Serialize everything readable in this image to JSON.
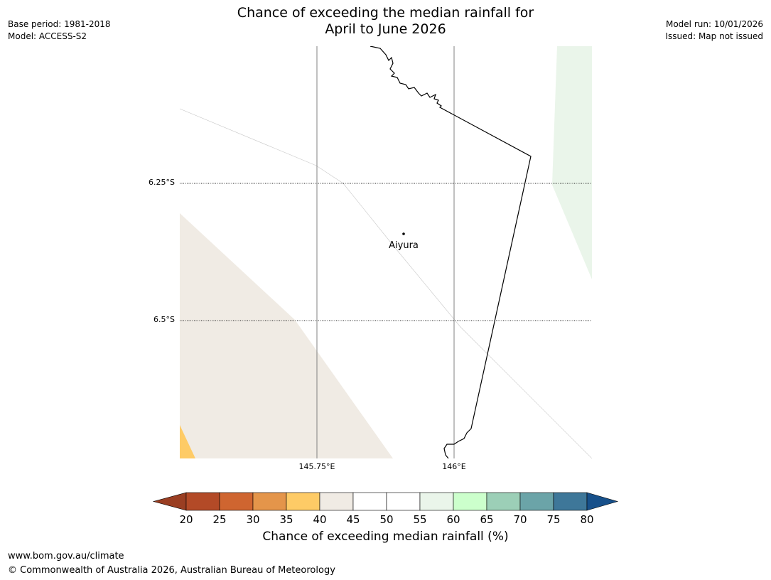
{
  "header": {
    "title_line1": "Chance of exceeding the median rainfall for",
    "title_line2": "April to June 2026",
    "base_period": "Base period: 1981-2018",
    "model": "Model: ACCESS-S2",
    "model_run": "Model run: 10/01/2026",
    "issued": "Issued: Map not issued"
  },
  "map": {
    "lat_labels": [
      "6.25°S",
      "6.5°S"
    ],
    "lon_labels": [
      "145.75°E",
      "146°E"
    ],
    "place": {
      "name": "Aiyura",
      "marker": "point-marker"
    },
    "colors": {
      "band_35_40": "#fecb66",
      "band_40_45": "#f0ebe4",
      "band_55_60": "#eaf5ea"
    }
  },
  "colorbar": {
    "ticks": [
      "20",
      "25",
      "30",
      "35",
      "40",
      "45",
      "50",
      "55",
      "60",
      "65",
      "70",
      "75",
      "80"
    ],
    "colors": [
      "#b34a27",
      "#cf6530",
      "#e4954a",
      "#fecb66",
      "#f0ebe4",
      "#ffffff",
      "#ffffff",
      "#eaf5ea",
      "#ccffcc",
      "#9ccfb7",
      "#6ba4a8",
      "#3e7799"
    ],
    "under_color": "#9a3e22",
    "over_color": "#17508a",
    "label": "Chance of exceeding median rainfall (%)"
  },
  "footer": {
    "url": "www.bom.gov.au/climate",
    "copyright": "© Commonwealth of Australia 2026, Australian Bureau of Meteorology"
  }
}
